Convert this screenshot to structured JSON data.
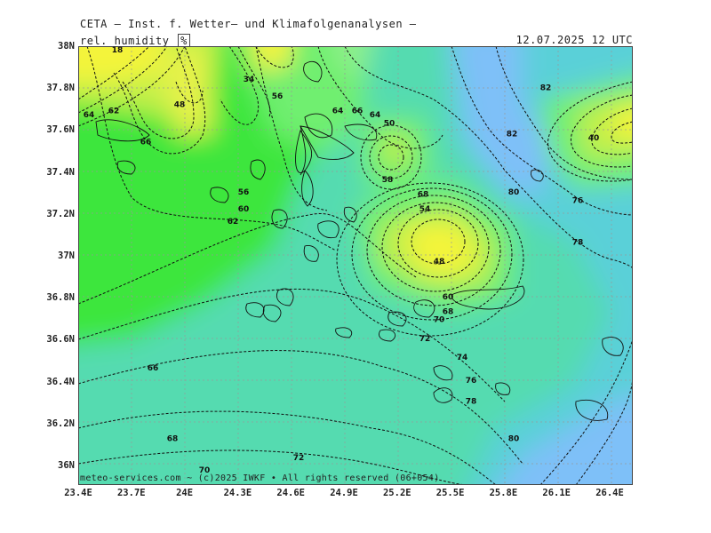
{
  "header": {
    "title": "CETA – Inst. f. Wetter– und Klimafolgenanalysen –",
    "variable": "rel. humidity",
    "unit": "%",
    "datetime": "12.07.2025  12 UTC"
  },
  "footer": {
    "copyright": "meteo-services.com ~ (c)2025 IWKF • All rights reserved (06+054)"
  },
  "axes": {
    "lat_labels": [
      "38N",
      "37.8N",
      "37.6N",
      "37.4N",
      "37.2N",
      "37N",
      "36.8N",
      "36.6N",
      "36.4N",
      "36.2N",
      "36N"
    ],
    "lon_labels": [
      "23.4E",
      "23.7E",
      "24E",
      "24.3E",
      "24.6E",
      "24.9E",
      "25.2E",
      "25.5E",
      "25.8E",
      "26.1E",
      "26.4E"
    ]
  },
  "contour_labels": [
    {
      "text": "18",
      "lon": 23.62,
      "lat": 37.98
    },
    {
      "text": "34",
      "lon": 24.36,
      "lat": 37.84
    },
    {
      "text": "56",
      "lon": 24.52,
      "lat": 37.76
    },
    {
      "text": "64",
      "lon": 24.86,
      "lat": 37.69
    },
    {
      "text": "66",
      "lon": 24.97,
      "lat": 37.69
    },
    {
      "text": "64",
      "lon": 25.07,
      "lat": 37.67
    },
    {
      "text": "50",
      "lon": 25.15,
      "lat": 37.63
    },
    {
      "text": "62",
      "lon": 23.6,
      "lat": 37.69
    },
    {
      "text": "64",
      "lon": 23.46,
      "lat": 37.67
    },
    {
      "text": "66",
      "lon": 23.78,
      "lat": 37.54
    },
    {
      "text": "48",
      "lon": 23.97,
      "lat": 37.72
    },
    {
      "text": "56",
      "lon": 24.33,
      "lat": 37.3
    },
    {
      "text": "60",
      "lon": 24.33,
      "lat": 37.22
    },
    {
      "text": "62",
      "lon": 24.27,
      "lat": 37.16
    },
    {
      "text": "58",
      "lon": 25.14,
      "lat": 37.36
    },
    {
      "text": "68",
      "lon": 25.34,
      "lat": 37.29
    },
    {
      "text": "54",
      "lon": 25.35,
      "lat": 37.22
    },
    {
      "text": "48",
      "lon": 25.43,
      "lat": 36.97
    },
    {
      "text": "60",
      "lon": 25.48,
      "lat": 36.8
    },
    {
      "text": "68",
      "lon": 25.48,
      "lat": 36.73
    },
    {
      "text": "70",
      "lon": 25.43,
      "lat": 36.69
    },
    {
      "text": "72",
      "lon": 25.35,
      "lat": 36.6
    },
    {
      "text": "74",
      "lon": 25.56,
      "lat": 36.51
    },
    {
      "text": "76",
      "lon": 25.61,
      "lat": 36.4
    },
    {
      "text": "78",
      "lon": 25.61,
      "lat": 36.3
    },
    {
      "text": "80",
      "lon": 25.85,
      "lat": 36.12
    },
    {
      "text": "82",
      "lon": 25.84,
      "lat": 37.58
    },
    {
      "text": "82",
      "lon": 26.03,
      "lat": 37.8
    },
    {
      "text": "80",
      "lon": 25.85,
      "lat": 37.3
    },
    {
      "text": "76",
      "lon": 26.21,
      "lat": 37.26
    },
    {
      "text": "78",
      "lon": 26.21,
      "lat": 37.06
    },
    {
      "text": "40",
      "lon": 26.3,
      "lat": 37.56
    },
    {
      "text": "66",
      "lon": 23.82,
      "lat": 36.46
    },
    {
      "text": "68",
      "lon": 23.93,
      "lat": 36.12
    },
    {
      "text": "70",
      "lon": 24.11,
      "lat": 35.97
    },
    {
      "text": "72",
      "lon": 24.64,
      "lat": 36.03
    }
  ],
  "colors": {
    "dry_yellow": "#f4f43a",
    "yellow_green": "#c2f04a",
    "light_green": "#6fef6f",
    "green": "#3ee63e",
    "teal": "#52dca8",
    "cyan": "#5ad0d8",
    "sky_blue": "#7ec0f8"
  }
}
